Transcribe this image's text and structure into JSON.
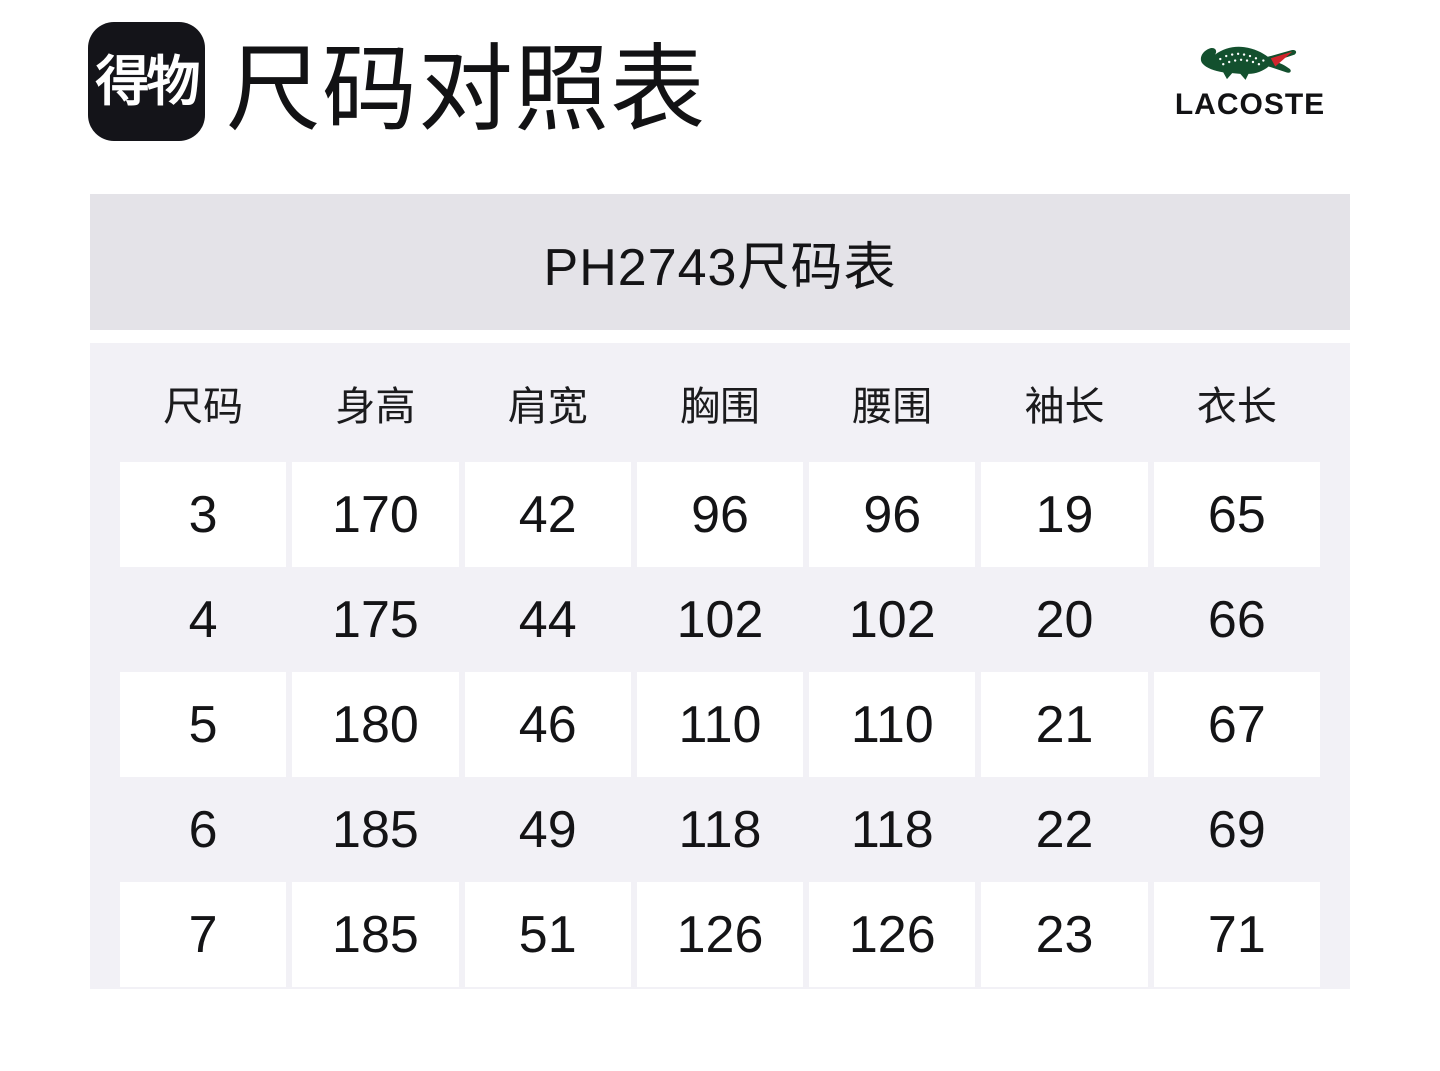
{
  "header": {
    "app_logo_text": "得物",
    "title": "尺码对照表",
    "brand_name": "LACOSTE",
    "brand_logo_icon": "crocodile-icon"
  },
  "banner": {
    "title": "PH2743尺码表"
  },
  "size_table": {
    "columns": [
      "尺码",
      "身高",
      "肩宽",
      "胸围",
      "腰围",
      "袖长",
      "衣长"
    ],
    "rows": [
      [
        "3",
        "170",
        "42",
        "96",
        "96",
        "19",
        "65"
      ],
      [
        "4",
        "175",
        "44",
        "102",
        "102",
        "20",
        "66"
      ],
      [
        "5",
        "180",
        "46",
        "110",
        "110",
        "21",
        "67"
      ],
      [
        "6",
        "185",
        "49",
        "118",
        "118",
        "22",
        "69"
      ],
      [
        "7",
        "185",
        "51",
        "126",
        "126",
        "23",
        "71"
      ]
    ]
  },
  "chart_data": {
    "type": "table",
    "title": "PH2743尺码表",
    "columns": [
      "尺码",
      "身高",
      "肩宽",
      "胸围",
      "腰围",
      "袖长",
      "衣长"
    ],
    "rows": [
      [
        3,
        170,
        42,
        96,
        96,
        19,
        65
      ],
      [
        4,
        175,
        44,
        102,
        102,
        20,
        66
      ],
      [
        5,
        180,
        46,
        110,
        110,
        21,
        67
      ],
      [
        6,
        185,
        49,
        118,
        118,
        22,
        69
      ],
      [
        7,
        185,
        51,
        126,
        126,
        23,
        71
      ]
    ]
  },
  "colors": {
    "banner_bg": "#e4e3e8",
    "table_bg": "#f2f1f6",
    "cell_bg": "#ffffff",
    "text": "#141416",
    "dewu_logo_bg": "#141419",
    "lacoste_green": "#13502e",
    "lacoste_red": "#d0252c"
  }
}
